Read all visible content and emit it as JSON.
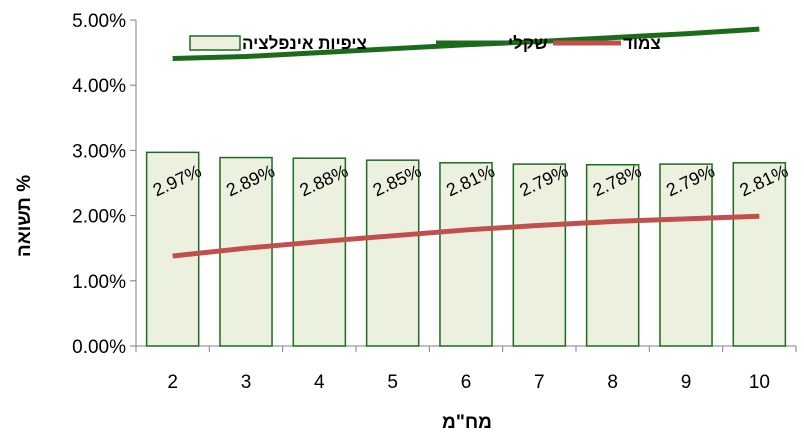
{
  "chart_data": {
    "type": "bar",
    "xlabel": "מח\"מ",
    "ylabel": "תשואה %",
    "ylim": [
      0,
      0.05
    ],
    "y_ticks": [
      "0.00%",
      "1.00%",
      "2.00%",
      "3.00%",
      "4.00%",
      "5.00%"
    ],
    "categories": [
      "2",
      "3",
      "4",
      "5",
      "6",
      "7",
      "8",
      "9",
      "10"
    ],
    "grid": false,
    "legend_position": "top",
    "series": [
      {
        "name": "ציפיות אינפלציה",
        "kind": "bar",
        "color": "#ebf1de",
        "edge_color": "#1e6b1e",
        "values": [
          0.0297,
          0.0289,
          0.0288,
          0.0285,
          0.0281,
          0.0279,
          0.0278,
          0.0279,
          0.0281
        ],
        "labels": [
          "2.97%",
          "2.89%",
          "2.88%",
          "2.85%",
          "2.81%",
          "2.79%",
          "2.78%",
          "2.79%",
          "2.81%"
        ]
      },
      {
        "name": "שקלי",
        "kind": "line",
        "color": "#1a6b1a",
        "values": [
          0.0441,
          0.0444,
          0.045,
          0.0456,
          0.0462,
          0.0467,
          0.0473,
          0.0479,
          0.0486
        ]
      },
      {
        "name": "צמוד",
        "kind": "line",
        "color": "#c0504d",
        "values": [
          0.0138,
          0.015,
          0.016,
          0.0169,
          0.0178,
          0.0185,
          0.0191,
          0.0195,
          0.0199
        ]
      }
    ]
  }
}
